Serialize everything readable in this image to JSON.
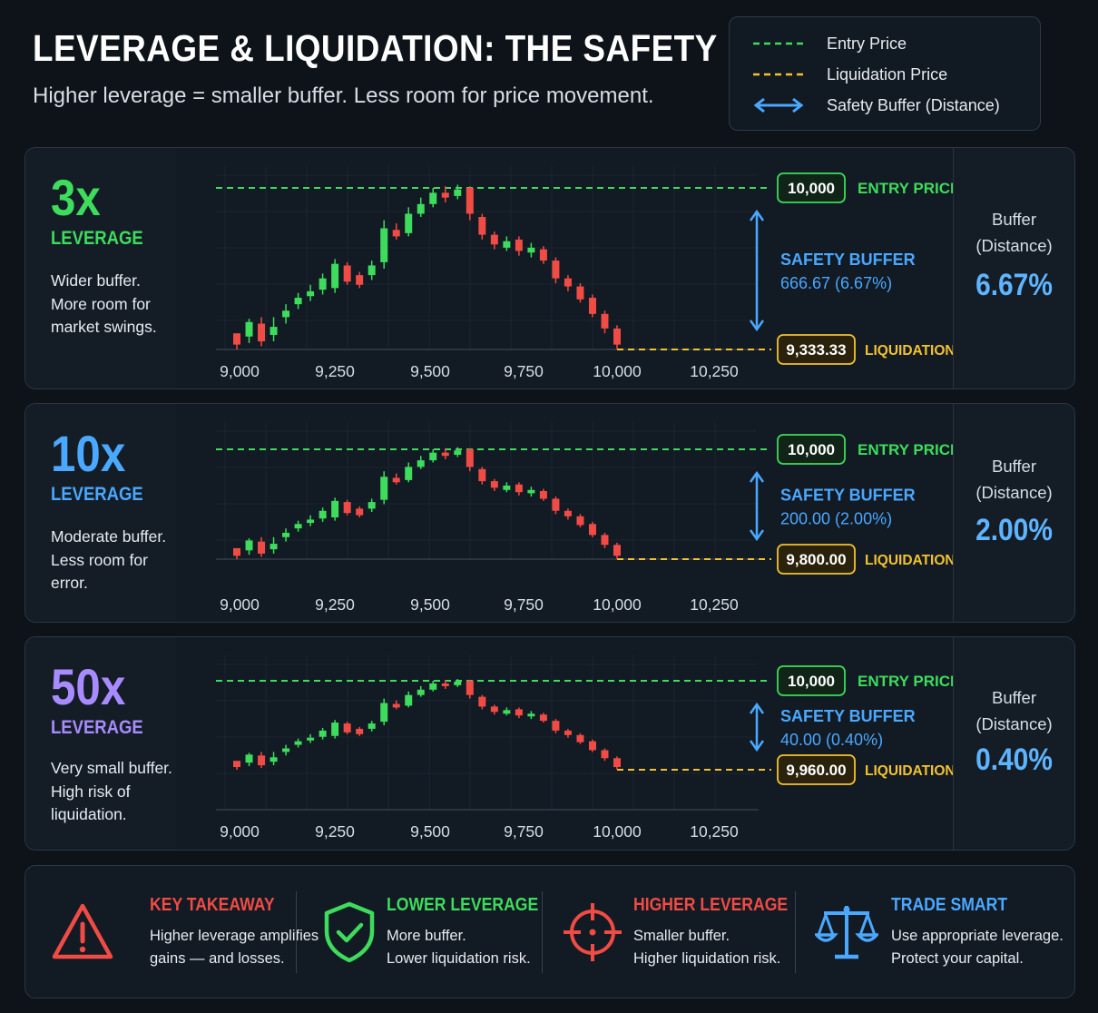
{
  "header": {
    "title": "LEVERAGE & LIQUIDATION: THE SAFETY BUFFER",
    "subtitle": "Higher leverage = smaller buffer. Less room for price movement."
  },
  "legend": [
    {
      "label": "Entry Price",
      "color": "#3ddc5c",
      "style": "dashed"
    },
    {
      "label": "Liquidation Price",
      "color": "#f2c230",
      "style": "dashed"
    },
    {
      "label": "Safety Buffer (Distance)",
      "color": "#4aa8ff",
      "style": "double-arrow"
    }
  ],
  "colors": {
    "green": "#3ddc5c",
    "red": "#f04b45",
    "yellow": "#f2c230",
    "blue": "#4aa8ff",
    "purple": "#a88bff",
    "background": "#0d1319"
  },
  "chart_data": [
    {
      "type": "candlestick",
      "leverage": "3x",
      "x_ticks": [
        "9,000",
        "9,250",
        "9,500",
        "9,750",
        "10,000",
        "10,250"
      ],
      "entry_price": 10000,
      "liquidation_price": 9333.33,
      "buffer": 666.67,
      "buffer_pct": 6.67,
      "ylim": [
        9300,
        10030
      ]
    },
    {
      "type": "candlestick",
      "leverage": "10x",
      "x_ticks": [
        "9,000",
        "9,250",
        "9,500",
        "9,750",
        "10,000",
        "10,250"
      ],
      "entry_price": 10000,
      "liquidation_price": 9800,
      "buffer": 200,
      "buffer_pct": 2.0,
      "ylim": [
        9780,
        10010
      ]
    },
    {
      "type": "candlestick",
      "leverage": "50x",
      "x_ticks": [
        "9,000",
        "9,250",
        "9,500",
        "9,750",
        "10,000",
        "10,250"
      ],
      "entry_price": 10000,
      "liquidation_price": 9960,
      "buffer": 40,
      "buffer_pct": 0.4,
      "ylim": [
        9955,
        10002
      ]
    }
  ],
  "panels": [
    {
      "leverage": "3x",
      "leverage_label": "LEVERAGE",
      "accent": "#3ddc5c",
      "description": [
        "Wider buffer.",
        "More room for",
        "market swings."
      ],
      "entry_badge": "10,000",
      "entry_label": "ENTRY PRICE",
      "buffer_label": "SAFETY BUFFER",
      "buffer_value": "666.67 (6.67%)",
      "liq_badge": "9,333.33",
      "liq_label": "LIQUIDATION PRICE",
      "side_title": [
        "Buffer",
        "(Distance)"
      ],
      "side_value": "6.67%"
    },
    {
      "leverage": "10x",
      "leverage_label": "LEVERAGE",
      "accent": "#4aa8ff",
      "description": [
        "Moderate buffer.",
        "Less room for",
        "error."
      ],
      "entry_badge": "10,000",
      "entry_label": "ENTRY PRICE",
      "buffer_label": "SAFETY BUFFER",
      "buffer_value": "200.00 (2.00%)",
      "liq_badge": "9,800.00",
      "liq_label": "LIQUIDATION PRICE",
      "side_title": [
        "Buffer",
        "(Distance)"
      ],
      "side_value": "2.00%"
    },
    {
      "leverage": "50x",
      "leverage_label": "LEVERAGE",
      "accent": "#a88bff",
      "description": [
        "Very small buffer.",
        "High risk of",
        "liquidation."
      ],
      "entry_badge": "10,000",
      "entry_label": "ENTRY PRICE",
      "buffer_label": "SAFETY BUFFER",
      "buffer_value": "40.00 (0.40%)",
      "liq_badge": "9,960.00",
      "liq_label": "LIQUIDATION PRICE",
      "side_title": [
        "Buffer",
        "(Distance)"
      ],
      "side_value": "0.40%"
    }
  ],
  "footer": [
    {
      "icon": "warning-triangle-icon",
      "heading": "KEY TAKEAWAY",
      "color": "#f04b45",
      "lines": [
        "Higher leverage amplifies",
        "gains — and losses."
      ]
    },
    {
      "icon": "shield-check-icon",
      "heading": "LOWER LEVERAGE",
      "color": "#3ddc5c",
      "lines": [
        "More buffer.",
        "Lower liquidation risk."
      ]
    },
    {
      "icon": "crosshair-icon",
      "heading": "HIGHER LEVERAGE",
      "color": "#f04b45",
      "lines": [
        "Smaller buffer.",
        "Higher liquidation risk."
      ]
    },
    {
      "icon": "balance-scale-icon",
      "heading": "TRADE SMART",
      "color": "#4aa8ff",
      "lines": [
        "Use appropriate leverage.",
        "Protect your capital."
      ]
    }
  ]
}
